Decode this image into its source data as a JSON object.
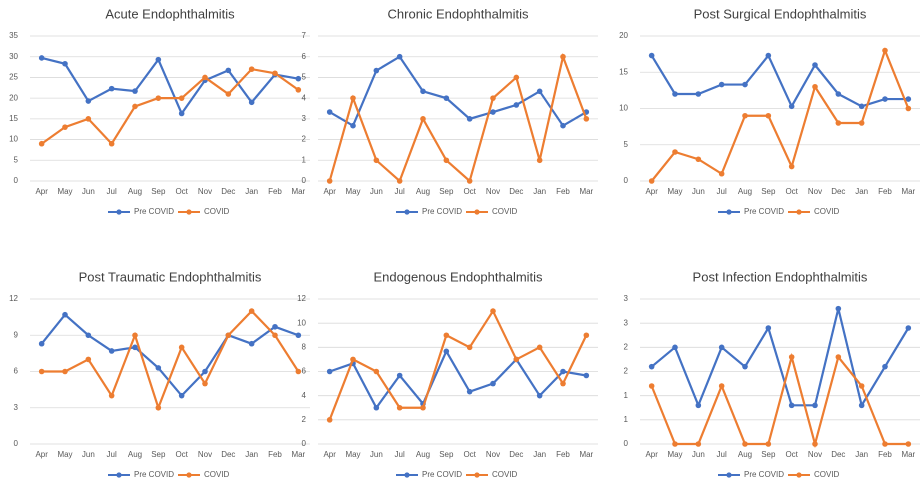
{
  "chart_data": [
    {
      "type": "line",
      "title": "Acute Endophthalmitis",
      "categories": [
        "Apr",
        "May",
        "Jun",
        "Jul",
        "Aug",
        "Sep",
        "Oct",
        "Nov",
        "Dec",
        "Jan",
        "Feb",
        "Mar"
      ],
      "series": [
        {
          "name": "Pre COVID",
          "color": "#4472c4",
          "values": [
            29.7,
            28.3,
            19.3,
            22.3,
            21.7,
            29.3,
            16.3,
            24.3,
            26.7,
            19,
            25.7,
            24.7
          ]
        },
        {
          "name": "COVID",
          "color": "#ed7d31",
          "values": [
            9,
            13,
            15,
            9,
            18,
            20,
            20,
            25,
            21,
            27,
            26,
            22
          ]
        }
      ],
      "ylim": [
        0,
        35
      ],
      "yticks": [
        0,
        5,
        10,
        15,
        20,
        25,
        30,
        35
      ],
      "grid": true
    },
    {
      "type": "line",
      "title": "Chronic Endophthalmitis",
      "categories": [
        "Apr",
        "May",
        "Jun",
        "Jul",
        "Aug",
        "Sep",
        "Oct",
        "Nov",
        "Dec",
        "Jan",
        "Feb",
        "Mar"
      ],
      "series": [
        {
          "name": "Pre COVID",
          "color": "#4472c4",
          "values": [
            3.33,
            2.67,
            5.33,
            6,
            4.33,
            4,
            3,
            3.33,
            3.67,
            4.33,
            2.67,
            3.33
          ]
        },
        {
          "name": "COVID",
          "color": "#ed7d31",
          "values": [
            0,
            4,
            1,
            0,
            3,
            1,
            0,
            4,
            5,
            1,
            6,
            3
          ]
        }
      ],
      "ylim": [
        0,
        7
      ],
      "yticks": [
        0,
        1,
        2,
        3,
        4,
        5,
        6,
        7
      ],
      "grid": true
    },
    {
      "type": "line",
      "title": "Post Surgical Endophthalmitis",
      "categories": [
        "Apr",
        "May",
        "Jun",
        "Jul",
        "Aug",
        "Sep",
        "Oct",
        "Nov",
        "Dec",
        "Jan",
        "Feb",
        "Mar"
      ],
      "series": [
        {
          "name": "Pre COVID",
          "color": "#4472c4",
          "values": [
            17.3,
            12,
            12,
            13.3,
            13.3,
            17.3,
            10.3,
            16,
            12,
            10.3,
            11.3,
            11.3
          ]
        },
        {
          "name": "COVID",
          "color": "#ed7d31",
          "values": [
            0,
            4,
            3,
            1,
            9,
            9,
            2,
            13,
            8,
            8,
            18,
            10
          ]
        }
      ],
      "ylim": [
        0,
        20
      ],
      "yticks": [
        0,
        5,
        10,
        15,
        20
      ],
      "grid": true
    },
    {
      "type": "line",
      "title": "Post Traumatic Endophthalmitis",
      "categories": [
        "Apr",
        "May",
        "Jun",
        "Jul",
        "Aug",
        "Sep",
        "Oct",
        "Nov",
        "Dec",
        "Jan",
        "Feb",
        "Mar"
      ],
      "series": [
        {
          "name": "Pre COVID",
          "color": "#4472c4",
          "values": [
            8.3,
            10.7,
            9,
            7.7,
            8,
            6.3,
            4,
            6,
            9,
            8.3,
            9.7,
            9
          ]
        },
        {
          "name": "COVID",
          "color": "#ed7d31",
          "values": [
            6,
            6,
            7,
            4,
            9,
            3,
            8,
            5,
            9,
            11,
            9,
            6
          ]
        }
      ],
      "ylim": [
        0,
        12
      ],
      "yticks": [
        0,
        3,
        6,
        9,
        12
      ],
      "grid": true
    },
    {
      "type": "line",
      "title": "Endogenous Endophthalmitis",
      "categories": [
        "Apr",
        "May",
        "Jun",
        "Jul",
        "Aug",
        "Sep",
        "Oct",
        "Nov",
        "Dec",
        "Jan",
        "Feb",
        "Mar"
      ],
      "series": [
        {
          "name": "Pre COVID",
          "color": "#4472c4",
          "values": [
            6,
            6.67,
            3,
            5.67,
            3.33,
            7.67,
            4.33,
            5,
            7,
            4,
            6,
            5.67
          ]
        },
        {
          "name": "COVID",
          "color": "#ed7d31",
          "values": [
            2,
            7,
            6,
            3,
            3,
            9,
            8,
            11,
            7,
            8,
            5,
            9
          ]
        }
      ],
      "ylim": [
        0,
        12
      ],
      "yticks": [
        0,
        2,
        4,
        6,
        8,
        10,
        12
      ],
      "grid": true
    },
    {
      "type": "line",
      "title": "Post Infection Endophthalmitis",
      "categories": [
        "Apr",
        "May",
        "Jun",
        "Jul",
        "Aug",
        "Sep",
        "Oct",
        "Nov",
        "Dec",
        "Jan",
        "Feb",
        "Mar"
      ],
      "series": [
        {
          "name": "Pre COVID",
          "color": "#4472c4",
          "values": [
            1.6,
            2.0,
            0.8,
            2.0,
            1.6,
            2.4,
            0.8,
            0.8,
            2.8,
            0.8,
            1.6,
            2.4
          ]
        },
        {
          "name": "COVID",
          "color": "#ed7d31",
          "values": [
            1.2,
            0,
            0,
            1.2,
            0,
            0,
            1.8,
            0,
            1.8,
            1.2,
            0,
            0
          ]
        }
      ],
      "ylim": [
        0,
        3
      ],
      "yticks": [
        0,
        {
          "value": 0.5,
          "label": "1"
        },
        1,
        {
          "value": 1.5,
          "label": "2"
        },
        2,
        {
          "value": 2.5,
          "label": "3"
        },
        3
      ],
      "grid": true
    }
  ]
}
